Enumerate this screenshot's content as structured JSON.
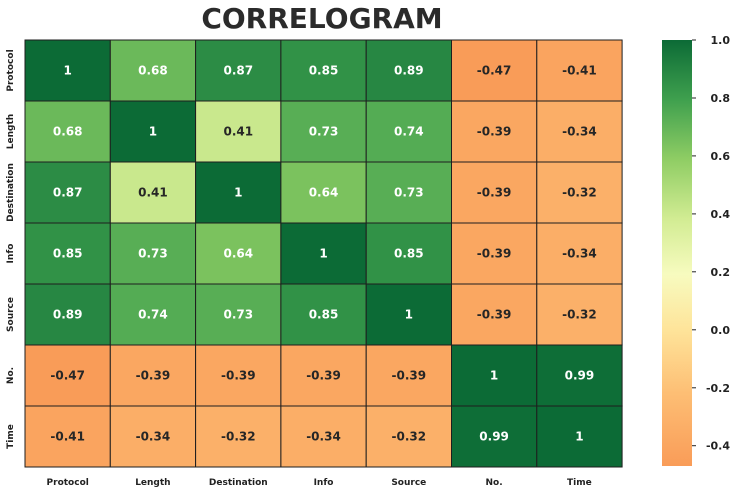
{
  "chart_data": {
    "type": "heatmap",
    "title": "CORRELOGRAM",
    "labels": [
      "Protocol",
      "Length",
      "Destination",
      "Info",
      "Source",
      "No.",
      "Time"
    ],
    "matrix": [
      [
        "1",
        "0.68",
        "0.87",
        "0.85",
        "0.89",
        "-0.47",
        "-0.41"
      ],
      [
        "0.68",
        "1",
        "0.41",
        "0.73",
        "0.74",
        "-0.39",
        "-0.34"
      ],
      [
        "0.87",
        "0.41",
        "1",
        "0.64",
        "0.73",
        "-0.39",
        "-0.32"
      ],
      [
        "0.85",
        "0.73",
        "0.64",
        "1",
        "0.85",
        "-0.39",
        "-0.34"
      ],
      [
        "0.89",
        "0.74",
        "0.73",
        "0.85",
        "1",
        "-0.39",
        "-0.32"
      ],
      [
        "-0.47",
        "-0.39",
        "-0.39",
        "-0.39",
        "-0.39",
        "1",
        "0.99"
      ],
      [
        "-0.41",
        "-0.34",
        "-0.32",
        "-0.34",
        "-0.32",
        "0.99",
        "1"
      ]
    ],
    "colorbar": {
      "min": -0.47,
      "max": 1.0,
      "ticks": [
        "1.0",
        "0.8",
        "0.6",
        "0.4",
        "0.2",
        "0.0",
        "-0.2",
        "-0.4"
      ],
      "colormap": "RdYlGn",
      "low_color": "#f99c58",
      "high_color": "#0c6b36"
    }
  }
}
